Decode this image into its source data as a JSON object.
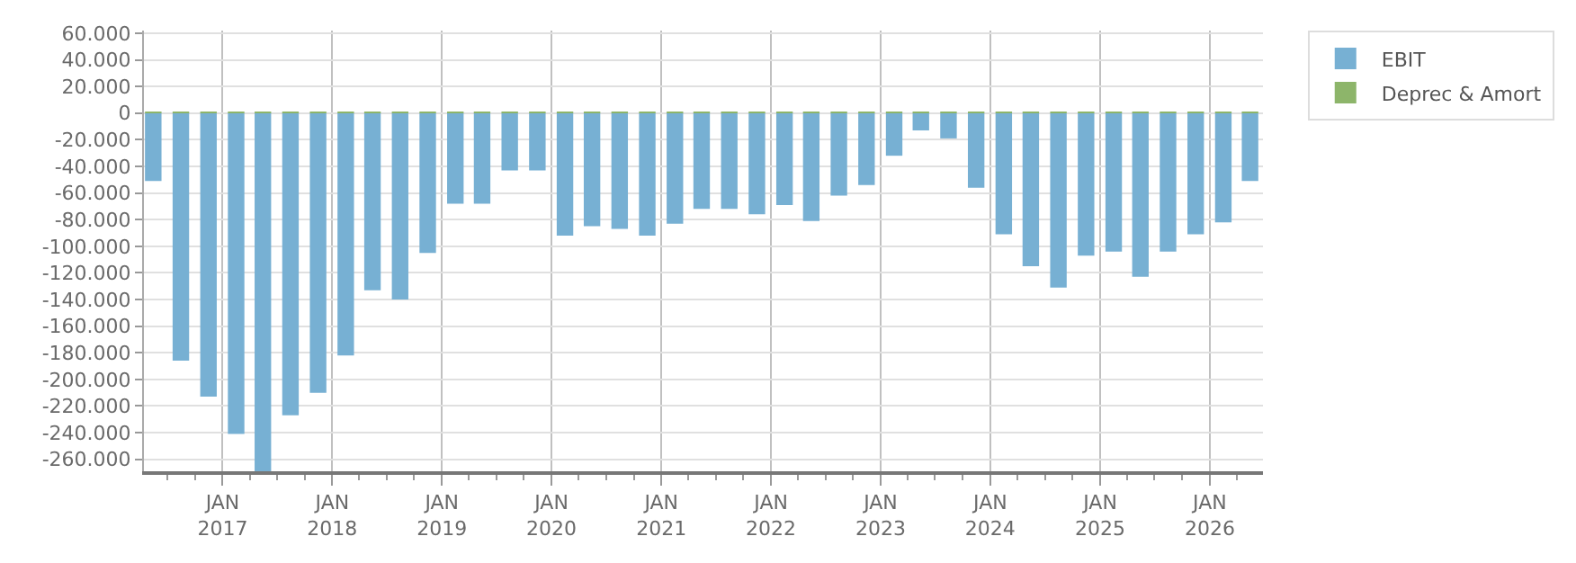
{
  "chart_data": {
    "type": "bar",
    "stacked": true,
    "x": [
      "2016-05-15",
      "2016-08-15",
      "2016-11-15",
      "2017-02-15",
      "2017-05-15",
      "2017-08-15",
      "2017-11-15",
      "2018-02-15",
      "2018-05-15",
      "2018-08-15",
      "2018-11-15",
      "2019-02-15",
      "2019-05-15",
      "2019-08-15",
      "2019-11-15",
      "2020-02-15",
      "2020-05-15",
      "2020-08-15",
      "2020-11-15",
      "2021-02-15",
      "2021-05-15",
      "2021-08-15",
      "2021-11-15",
      "2022-02-15",
      "2022-05-15",
      "2022-08-15",
      "2022-11-15",
      "2023-02-15",
      "2023-05-15",
      "2023-08-15",
      "2023-11-15",
      "2024-02-15",
      "2024-05-15",
      "2024-08-15",
      "2024-11-15",
      "2025-02-15",
      "2025-05-15",
      "2025-08-15",
      "2025-11-15",
      "2026-02-15",
      "2026-05-15"
    ],
    "series": [
      {
        "name": "EBIT",
        "color": "#77b0d3",
        "values": [
          -51000,
          -186000,
          -213000,
          -241000,
          -269000,
          -227000,
          -210000,
          -182000,
          -133000,
          -140000,
          -105000,
          -68000,
          -68000,
          -43000,
          -43000,
          -92000,
          -85000,
          -87000,
          -92000,
          -83000,
          -72000,
          -72000,
          -76000,
          -69000,
          -81000,
          -62000,
          -54000,
          -32000,
          -13000,
          -19000,
          -56000,
          -91000,
          -115000,
          -131000,
          -107000,
          -104000,
          -123000,
          -104000,
          -91000,
          -82000,
          -51000
        ]
      },
      {
        "name": "Deprec & Amort",
        "color": "#8db56a",
        "values": [
          1000,
          1000,
          1000,
          1000,
          1000,
          1000,
          1000,
          1000,
          1000,
          1000,
          1000,
          1000,
          1000,
          1000,
          1000,
          1000,
          1000,
          1000,
          1000,
          1000,
          1000,
          1000,
          1000,
          1000,
          1000,
          1000,
          1000,
          1000,
          1000,
          1000,
          1000,
          1000,
          1000,
          1000,
          1000,
          1000,
          1000,
          1000,
          1000,
          1000,
          1000
        ]
      }
    ],
    "xlim": [
      "2016-04-14",
      "2026-06-27"
    ],
    "xticks": [
      {
        "value": "2017-01-01",
        "label": "JAN\n2017"
      },
      {
        "value": "2018-01-01",
        "label": "JAN\n2018"
      },
      {
        "value": "2019-01-01",
        "label": "JAN\n2019"
      },
      {
        "value": "2020-01-01",
        "label": "JAN\n2020"
      },
      {
        "value": "2021-01-01",
        "label": "JAN\n2021"
      },
      {
        "value": "2022-01-01",
        "label": "JAN\n2022"
      },
      {
        "value": "2023-01-01",
        "label": "JAN\n2023"
      },
      {
        "value": "2024-01-01",
        "label": "JAN\n2024"
      },
      {
        "value": "2025-01-01",
        "label": "JAN\n2025"
      },
      {
        "value": "2026-01-01",
        "label": "JAN\n2026"
      }
    ],
    "ylim": [
      -269000,
      62000
    ],
    "yticks": [
      {
        "value": 60000,
        "label": "60.000"
      },
      {
        "value": 40000,
        "label": "40.000"
      },
      {
        "value": 20000,
        "label": "20.000"
      },
      0,
      {
        "value": -20000,
        "label": "-20.000"
      },
      {
        "value": -40000,
        "label": "-40.000"
      },
      {
        "value": -60000,
        "label": "-60.000"
      },
      {
        "value": -80000,
        "label": "-80.000"
      },
      {
        "value": -100000,
        "label": "-100.000"
      },
      {
        "value": -120000,
        "label": "-120.000"
      },
      {
        "value": -140000,
        "label": "-140.000"
      },
      {
        "value": -160000,
        "label": "-160.000"
      },
      {
        "value": -180000,
        "label": "-180.000"
      },
      {
        "value": -200000,
        "label": "-200.000"
      },
      {
        "value": -220000,
        "label": "-220.000"
      },
      {
        "value": -240000,
        "label": "-240.000"
      },
      {
        "value": -260000,
        "label": "-260.000"
      }
    ],
    "grid": true,
    "legend": "top right"
  }
}
